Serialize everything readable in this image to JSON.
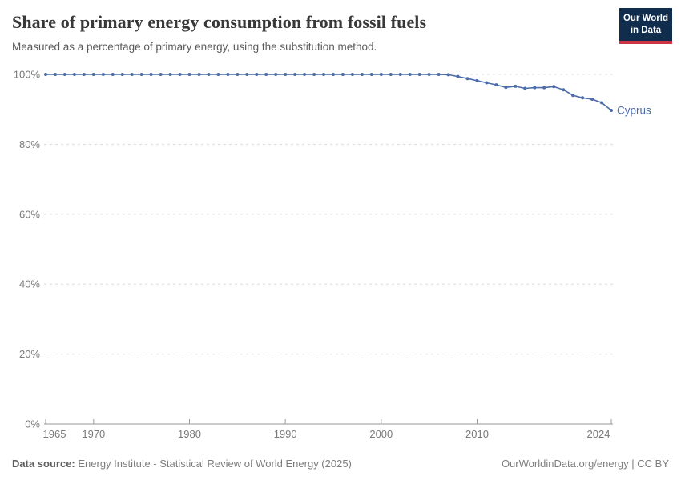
{
  "header": {
    "title": "Share of primary energy consumption from fossil fuels",
    "subtitle": "Measured as a percentage of primary energy, using the substitution method.",
    "logo": {
      "line1": "Our World",
      "line2": "in Data"
    }
  },
  "chart_data": {
    "type": "line",
    "title": "Share of primary energy consumption from fossil fuels",
    "subtitle": "Measured as a percentage of primary energy, using the substitution method.",
    "xlabel": "",
    "ylabel": "",
    "xlim": [
      1965,
      2024
    ],
    "ylim": [
      0,
      100
    ],
    "grid": "horizontal-dashed",
    "legend": "end-of-line-label",
    "line_color": "#4c6ba9",
    "x": [
      1965,
      1966,
      1967,
      1968,
      1969,
      1970,
      1971,
      1972,
      1973,
      1974,
      1975,
      1976,
      1977,
      1978,
      1979,
      1980,
      1981,
      1982,
      1983,
      1984,
      1985,
      1986,
      1987,
      1988,
      1989,
      1990,
      1991,
      1992,
      1993,
      1994,
      1995,
      1996,
      1997,
      1998,
      1999,
      2000,
      2001,
      2002,
      2003,
      2004,
      2005,
      2006,
      2007,
      2008,
      2009,
      2010,
      2011,
      2012,
      2013,
      2014,
      2015,
      2016,
      2017,
      2018,
      2019,
      2020,
      2021,
      2022,
      2023,
      2024
    ],
    "series": [
      {
        "name": "Cyprus",
        "values": [
          100,
          100,
          100,
          100,
          100,
          100,
          100,
          100,
          100,
          100,
          100,
          100,
          100,
          100,
          100,
          100,
          100,
          100,
          100,
          100,
          100,
          100,
          100,
          100,
          100,
          100,
          100,
          100,
          100,
          100,
          100,
          100,
          100,
          100,
          100,
          100,
          100,
          100,
          100,
          100,
          100,
          100,
          99.9,
          99.4,
          98.8,
          98.2,
          97.6,
          97.0,
          96.3,
          96.6,
          96.0,
          96.2,
          96.2,
          96.5,
          95.6,
          94.0,
          93.3,
          92.9,
          91.9,
          89.7
        ]
      }
    ],
    "yticks": [
      {
        "value": 0,
        "label": "0%"
      },
      {
        "value": 20,
        "label": "20%"
      },
      {
        "value": 40,
        "label": "40%"
      },
      {
        "value": 60,
        "label": "60%"
      },
      {
        "value": 80,
        "label": "80%"
      },
      {
        "value": 100,
        "label": "100%"
      }
    ],
    "xticks": [
      {
        "value": 1965,
        "label": "1965"
      },
      {
        "value": 1970,
        "label": "1970"
      },
      {
        "value": 1980,
        "label": "1980"
      },
      {
        "value": 1990,
        "label": "1990"
      },
      {
        "value": 2000,
        "label": "2000"
      },
      {
        "value": 2010,
        "label": "2010"
      },
      {
        "value": 2024,
        "label": "2024"
      }
    ]
  },
  "footer": {
    "source_label": "Data source:",
    "source_text": " Energy Institute - Statistical Review of World Energy (2025)",
    "link_text": "OurWorldinData.org/energy | CC BY"
  },
  "colors": {
    "line": "#4c6ba9",
    "grid": "#dcdcdc",
    "axis": "#9a9a9a",
    "tick_text": "#7a7a7a",
    "logo_navy": "#102d4e",
    "logo_red": "#cf3444"
  }
}
